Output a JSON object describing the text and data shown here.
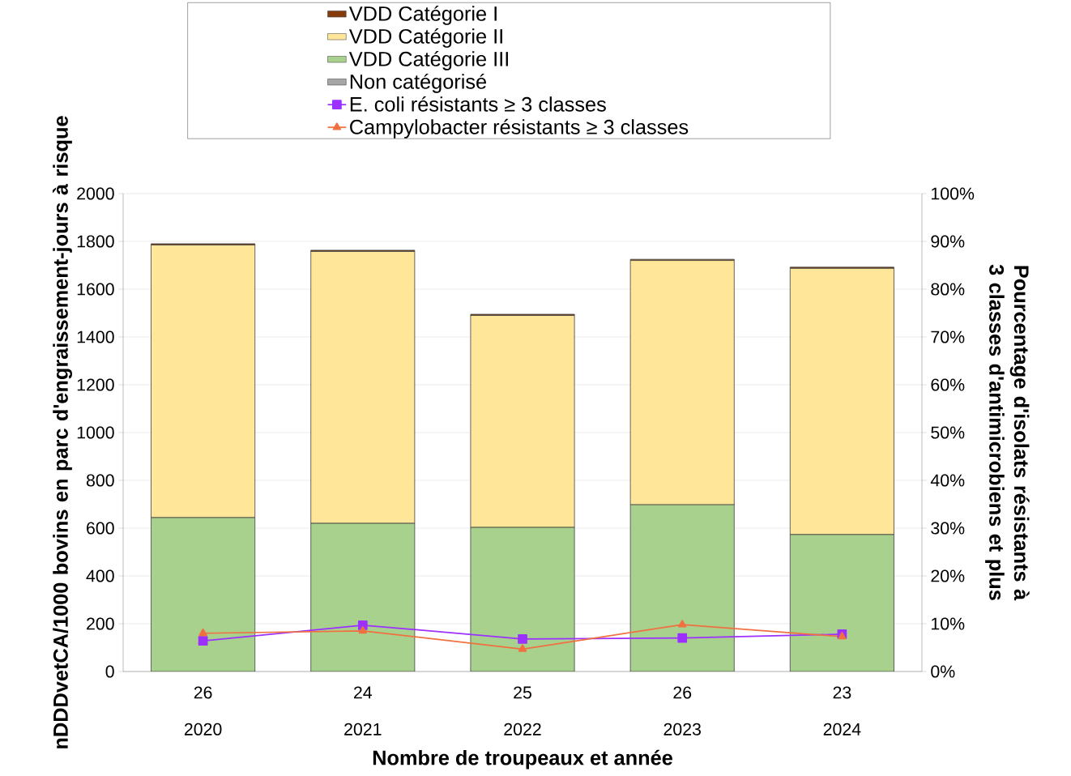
{
  "chart_data": {
    "type": "bar",
    "stacked": true,
    "categories": [
      "26\n2020",
      "24\n2021",
      "25\n2022",
      "26\n2023",
      "23\n2024"
    ],
    "series": [
      {
        "name": "VDD Catégorie III",
        "color": "#a9d18e",
        "values": [
          644,
          620,
          603,
          698,
          573
        ]
      },
      {
        "name": "VDD Catégorie II",
        "color": "#ffe699",
        "values": [
          1141,
          1138,
          887,
          1022,
          1114
        ]
      },
      {
        "name": "VDD Catégorie I",
        "color": "#843c0c",
        "values": [
          5,
          5,
          5,
          5,
          5
        ]
      },
      {
        "name": "Non catégorisé",
        "color": "#a6a6a6",
        "values": [
          0,
          0,
          0,
          0,
          0
        ]
      },
      {
        "name": "E. coli résistants ≥ 3 classes",
        "type": "line",
        "axis": "y2",
        "marker": "square",
        "color": "#9b30ff",
        "values": [
          6.4,
          9.7,
          6.8,
          7.0,
          7.8
        ]
      },
      {
        "name": "Campylobacter résistants ≥ 3 classes",
        "type": "line",
        "axis": "y2",
        "marker": "triangle",
        "color": "#f07040",
        "values": [
          8.0,
          8.5,
          4.7,
          9.8,
          7.3
        ]
      }
    ],
    "ylim": [
      0,
      2000
    ],
    "yticks": [
      0,
      200,
      400,
      600,
      800,
      1000,
      1200,
      1400,
      1600,
      1800,
      2000
    ],
    "y2lim": [
      0,
      100
    ],
    "y2ticks": [
      {
        "value": 0,
        "label": "0%"
      },
      {
        "value": 10,
        "label": "10%"
      },
      {
        "value": 20,
        "label": "20%"
      },
      {
        "value": 30,
        "label": "30%"
      },
      {
        "value": 40,
        "label": "40%"
      },
      {
        "value": 50,
        "label": "50%"
      },
      {
        "value": 60,
        "label": "60%"
      },
      {
        "value": 70,
        "label": "70%"
      },
      {
        "value": 80,
        "label": "80%"
      },
      {
        "value": 90,
        "label": "90%"
      },
      {
        "value": 100,
        "label": "100%"
      }
    ],
    "xlabel": "Nombre de troupeaux et année",
    "ylabel": "nDDDvetCA/1000 bovins en parc d'engraissement-jours à risque",
    "y2label": "Pourcentage d'isolats résistants à 3 classes d'antimicrobiens et plus",
    "legend": "top",
    "grid": "y"
  }
}
